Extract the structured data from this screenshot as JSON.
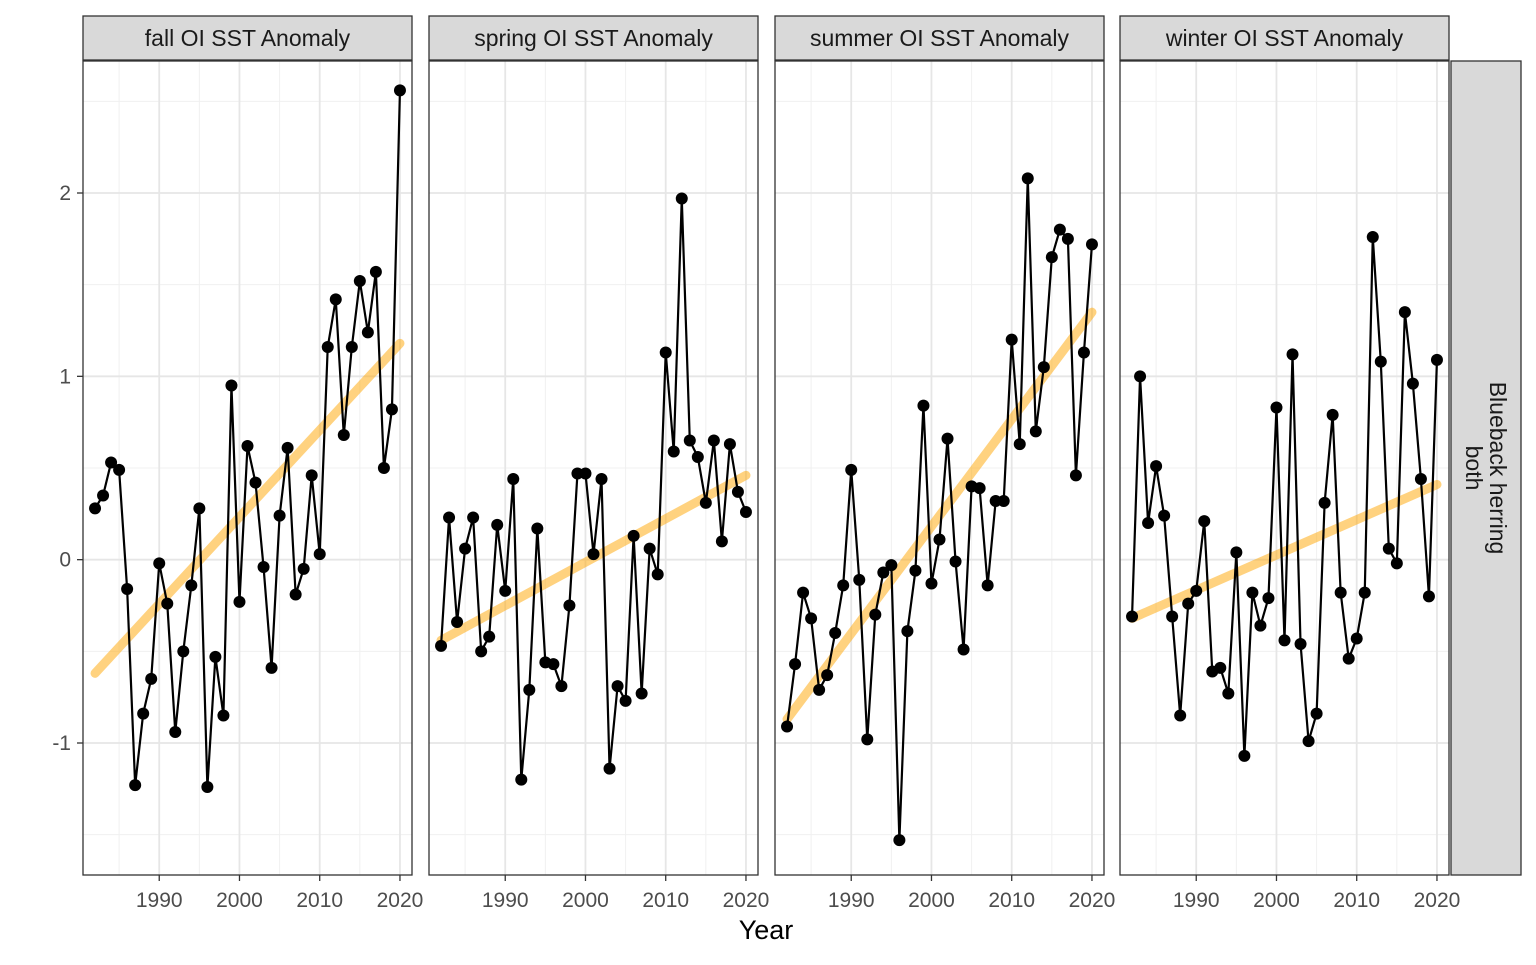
{
  "chart_data": {
    "type": "line",
    "xlabel": "Year",
    "ylabel": "",
    "row_strip": [
      "Blueback herring",
      "both"
    ],
    "xlim": [
      1980.5,
      2021.5
    ],
    "ylim": [
      -1.72,
      2.72
    ],
    "x_ticks": [
      1990,
      2000,
      2010,
      2020
    ],
    "y_ticks": [
      -1,
      0,
      1,
      2
    ],
    "grid": true,
    "point_color": "#000000",
    "line_color": "#000000",
    "trend_color": "#FFA500",
    "strip_fill": "#D9D9D9",
    "panels": [
      {
        "title": "fall OI SST Anomaly",
        "x": [
          1982,
          1983,
          1984,
          1985,
          1986,
          1987,
          1988,
          1989,
          1990,
          1991,
          1992,
          1993,
          1994,
          1995,
          1996,
          1997,
          1998,
          1999,
          2000,
          2001,
          2002,
          2003,
          2004,
          2005,
          2006,
          2007,
          2008,
          2009,
          2010,
          2011,
          2012,
          2013,
          2014,
          2015,
          2016,
          2017,
          2018,
          2019,
          2020
        ],
        "y": [
          0.28,
          0.35,
          0.53,
          0.49,
          -0.16,
          -1.23,
          -0.84,
          -0.65,
          -0.02,
          -0.24,
          -0.94,
          -0.5,
          -0.14,
          0.28,
          -1.24,
          -0.53,
          -0.85,
          0.95,
          -0.23,
          0.62,
          0.42,
          -0.04,
          -0.59,
          0.24,
          0.61,
          -0.19,
          -0.05,
          0.46,
          0.03,
          1.16,
          1.42,
          0.68,
          1.16,
          1.52,
          1.24,
          1.57,
          0.5,
          0.82,
          2.56
        ],
        "trend": [
          [
            1982,
            -0.62
          ],
          [
            2020,
            1.18
          ]
        ]
      },
      {
        "title": "spring OI SST Anomaly",
        "x": [
          1982,
          1983,
          1984,
          1985,
          1986,
          1987,
          1988,
          1989,
          1990,
          1991,
          1992,
          1993,
          1994,
          1995,
          1996,
          1997,
          1998,
          1999,
          2000,
          2001,
          2002,
          2003,
          2004,
          2005,
          2006,
          2007,
          2008,
          2009,
          2010,
          2011,
          2012,
          2013,
          2014,
          2015,
          2016,
          2017,
          2018,
          2019,
          2020
        ],
        "y": [
          -0.47,
          0.23,
          -0.34,
          0.06,
          0.23,
          -0.5,
          -0.42,
          0.19,
          -0.17,
          0.44,
          -1.2,
          -0.71,
          0.17,
          -0.56,
          -0.57,
          -0.69,
          -0.25,
          0.47,
          0.47,
          0.03,
          0.44,
          -1.14,
          -0.69,
          -0.77,
          0.13,
          -0.73,
          0.06,
          -0.08,
          1.13,
          0.59,
          1.97,
          0.65,
          0.56,
          0.31,
          0.65,
          0.1,
          0.63,
          0.37,
          0.26
        ],
        "trend": [
          [
            1982,
            -0.44
          ],
          [
            2020,
            0.46
          ]
        ]
      },
      {
        "title": "summer OI SST Anomaly",
        "x": [
          1982,
          1983,
          1984,
          1985,
          1986,
          1987,
          1988,
          1989,
          1990,
          1991,
          1992,
          1993,
          1994,
          1995,
          1996,
          1997,
          1998,
          1999,
          2000,
          2001,
          2002,
          2003,
          2004,
          2005,
          2006,
          2007,
          2008,
          2009,
          2010,
          2011,
          2012,
          2013,
          2014,
          2015,
          2016,
          2017,
          2018,
          2019,
          2020
        ],
        "y": [
          -0.91,
          -0.57,
          -0.18,
          -0.32,
          -0.71,
          -0.63,
          -0.4,
          -0.14,
          0.49,
          -0.11,
          -0.98,
          -0.3,
          -0.07,
          -0.03,
          -1.53,
          -0.39,
          -0.06,
          0.84,
          -0.13,
          0.11,
          0.66,
          -0.01,
          -0.49,
          0.4,
          0.39,
          -0.14,
          0.32,
          0.32,
          1.2,
          0.63,
          2.08,
          0.7,
          1.05,
          1.65,
          1.8,
          1.75,
          0.46,
          1.13,
          1.72
        ],
        "trend": [
          [
            1982,
            -0.87
          ],
          [
            2020,
            1.35
          ]
        ]
      },
      {
        "title": "winter OI SST Anomaly",
        "x": [
          1982,
          1983,
          1984,
          1985,
          1986,
          1987,
          1988,
          1989,
          1990,
          1991,
          1992,
          1993,
          1994,
          1995,
          1996,
          1997,
          1998,
          1999,
          2000,
          2001,
          2002,
          2003,
          2004,
          2005,
          2006,
          2007,
          2008,
          2009,
          2010,
          2011,
          2012,
          2013,
          2014,
          2015,
          2016,
          2017,
          2018,
          2019,
          2020
        ],
        "y": [
          -0.31,
          1.0,
          0.2,
          0.51,
          0.24,
          -0.31,
          -0.85,
          -0.24,
          -0.17,
          0.21,
          -0.61,
          -0.59,
          -0.73,
          0.04,
          -1.07,
          -0.18,
          -0.36,
          -0.21,
          0.83,
          -0.44,
          1.12,
          -0.46,
          -0.99,
          -0.84,
          0.31,
          0.79,
          -0.18,
          -0.54,
          -0.43,
          -0.18,
          1.76,
          1.08,
          0.06,
          -0.02,
          1.35,
          0.96,
          0.44,
          -0.2,
          1.09
        ],
        "trend": [
          [
            1982,
            -0.32
          ],
          [
            2020,
            0.41
          ]
        ]
      }
    ]
  }
}
